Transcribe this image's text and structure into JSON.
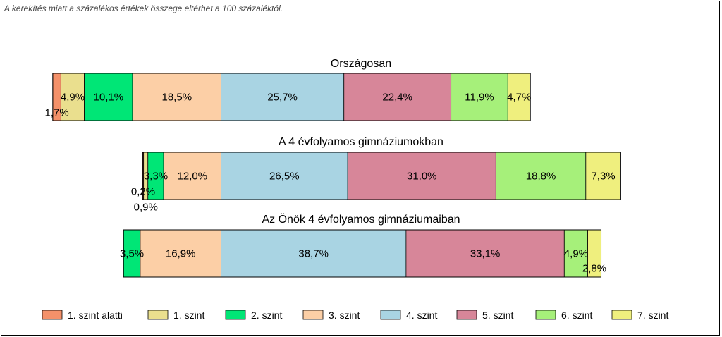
{
  "note": "A kerekítés miatt a  százalékos értékek összege eltérhet a 100 százaléktól.",
  "chart_data": {
    "type": "bar",
    "orientation": "horizontal-stacked",
    "legend_position": "bottom",
    "series": [
      {
        "name": "1. szint alatti",
        "color": "#F4916A"
      },
      {
        "name": "1. szint",
        "color": "#EADF8E"
      },
      {
        "name": "2. szint",
        "color": "#00E676"
      },
      {
        "name": "3. szint",
        "color": "#FCCFA6"
      },
      {
        "name": "4. szint",
        "color": "#A9D4E3"
      },
      {
        "name": "5. szint",
        "color": "#D78699"
      },
      {
        "name": "6. szint",
        "color": "#A6F07A"
      },
      {
        "name": "7. szint",
        "color": "#EFEF7E"
      }
    ],
    "bars": [
      {
        "title": "Országosan",
        "values": [
          1.7,
          4.9,
          10.1,
          18.5,
          25.7,
          22.4,
          11.9,
          4.7
        ],
        "labels": [
          "1,7%",
          "4,9%",
          "10,1%",
          "18,5%",
          "25,7%",
          "22,4%",
          "11,9%",
          "4,7%"
        ]
      },
      {
        "title": "A 4 évfolyamos gimnáziumokban",
        "values": [
          0.2,
          0.9,
          3.3,
          12.0,
          26.5,
          31.0,
          18.8,
          7.3
        ],
        "labels": [
          "0,2%",
          "0,9%",
          "3,3%",
          "12,0%",
          "26,5%",
          "31,0%",
          "18,8%",
          "7,3%"
        ]
      },
      {
        "title": "Az Önök 4 évfolyamos gimnáziumaiban",
        "values": [
          0.0,
          0.0,
          3.5,
          16.9,
          38.7,
          33.1,
          4.9,
          2.8
        ],
        "labels": [
          "",
          "",
          "3,5%",
          "16,9%",
          "38,7%",
          "33,1%",
          "4,9%",
          "2,8%"
        ]
      }
    ]
  }
}
